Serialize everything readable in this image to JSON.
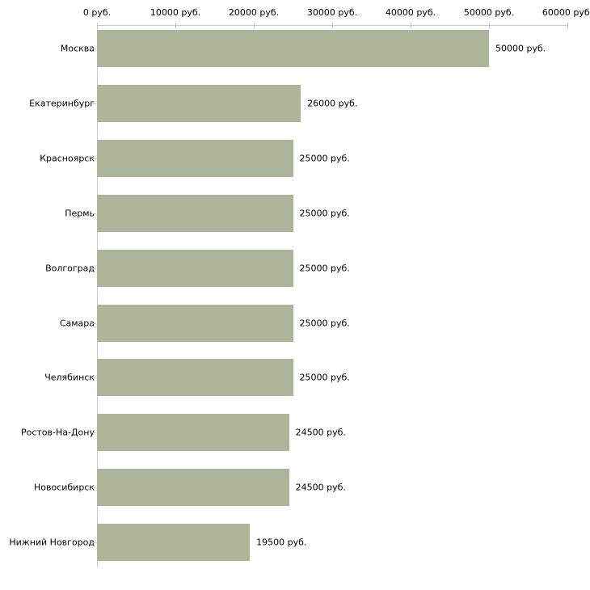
{
  "chart_data": {
    "type": "bar",
    "orientation": "horizontal",
    "title": "",
    "xlabel": "",
    "ylabel": "",
    "unit": "руб.",
    "categories": [
      "Москва",
      "Екатеринбург",
      "Красноярск",
      "Пермь",
      "Волгоград",
      "Самара",
      "Челябинск",
      "Ростов-На-Дону",
      "Новосибирск",
      "Нижний Новгород"
    ],
    "values": [
      50000,
      26000,
      25000,
      25000,
      25000,
      25000,
      25000,
      24500,
      24500,
      19500
    ],
    "value_labels": [
      "50000 руб.",
      "26000 руб.",
      "25000 руб.",
      "25000 руб.",
      "25000 руб.",
      "25000 руб.",
      "25000 руб.",
      "24500 руб.",
      "24500 руб.",
      "19500 руб."
    ],
    "x_ticks": [
      0,
      10000,
      20000,
      30000,
      40000,
      50000,
      60000
    ],
    "x_tick_labels": [
      "0 руб.",
      "10000 руб.",
      "20000 руб.",
      "30000 руб.",
      "40000 руб.",
      "50000 руб.",
      "60000 руб."
    ],
    "xlim": [
      0,
      60000
    ],
    "grid": false,
    "legend": "none",
    "colors": {
      "bar_fill": "#acb49a",
      "axis_line": "#c9c9c9",
      "tick_mark": "#c6c79f",
      "text": "#000000",
      "background": "#ffffff"
    }
  }
}
